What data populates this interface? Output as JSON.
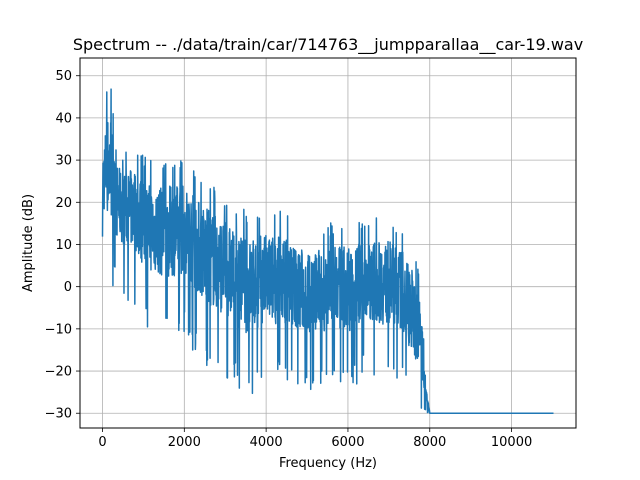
{
  "chart_data": {
    "type": "line",
    "title": "Spectrum -- ./data/train/car/714763__jumpparallaa__car-19.wav",
    "xlabel": "Frequency (Hz)",
    "ylabel": "Amplitude (dB)",
    "xlim": [
      -550,
      11575
    ],
    "ylim": [
      -33.5,
      54.2
    ],
    "xticks": [
      0,
      2000,
      4000,
      6000,
      8000,
      10000
    ],
    "xtick_labels": [
      "0",
      "2000",
      "4000",
      "6000",
      "8000",
      "10000"
    ],
    "yticks": [
      -30,
      -20,
      -10,
      0,
      10,
      20,
      30,
      40,
      50
    ],
    "ytick_labels": [
      "−30",
      "−20",
      "−10",
      "0",
      "10",
      "20",
      "30",
      "40",
      "50"
    ],
    "grid": true,
    "series": [
      {
        "color": "#1f77b4",
        "envelope_x": [
          0,
          100,
          200,
          300,
          500,
          800,
          1000,
          1500,
          2000,
          2500,
          3000,
          3500,
          4000,
          4500,
          5000,
          5500,
          6000,
          6500,
          7000,
          7200,
          7400,
          7500,
          7600,
          7700,
          7800,
          7900,
          8000,
          9000,
          10000,
          11025
        ],
        "envelope_upper": [
          36,
          47,
          50,
          35,
          32,
          34,
          31,
          30,
          31,
          26,
          22,
          18,
          19,
          18,
          14,
          15,
          16,
          16,
          17,
          15,
          14,
          13,
          9,
          5,
          -2,
          -21,
          -30,
          -30,
          -30,
          -30
        ],
        "envelope_lower": [
          8,
          1,
          -3,
          0,
          -2,
          -5,
          -10,
          -13,
          -12,
          -20,
          -22,
          -27,
          -24,
          -23,
          -25,
          -24,
          -26,
          -20,
          -24,
          -22,
          -25,
          -30,
          -30,
          -30,
          -30,
          -30,
          -30,
          -30,
          -30,
          -30
        ]
      }
    ]
  }
}
